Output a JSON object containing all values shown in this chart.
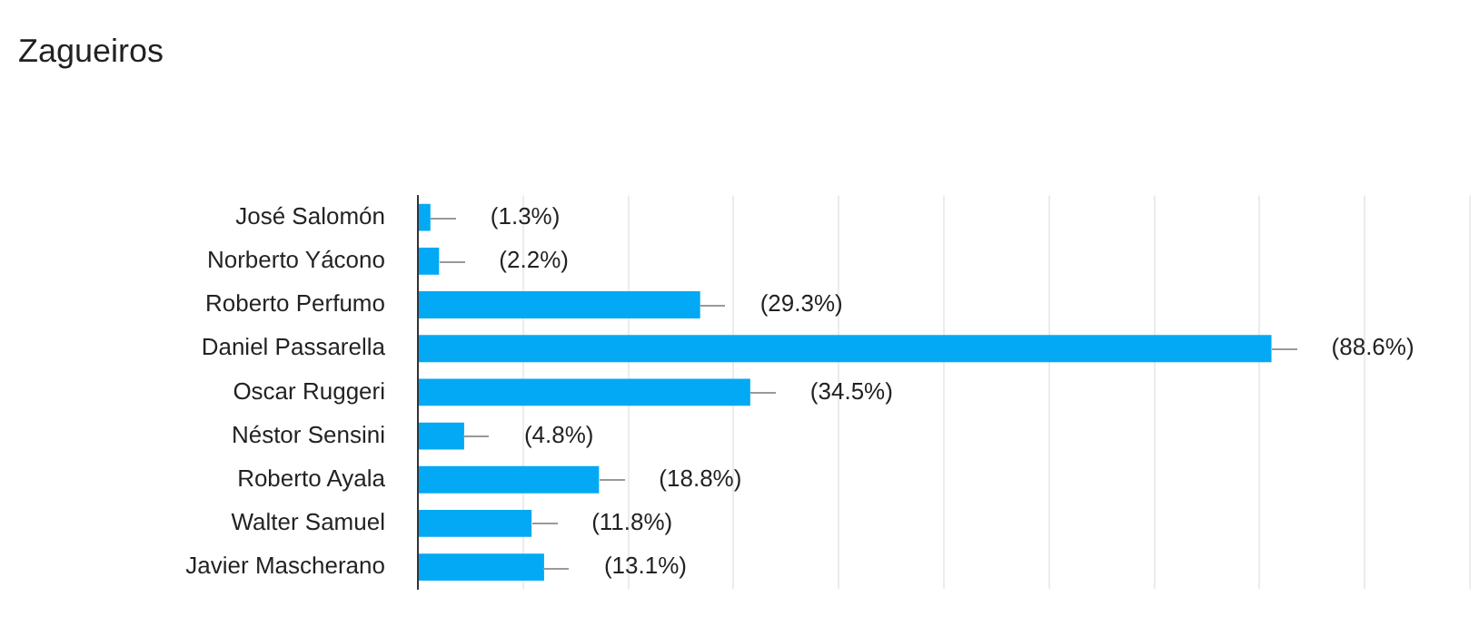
{
  "chart_data": {
    "type": "bar",
    "title": "Zagueiros",
    "orientation": "horizontal",
    "categories": [
      "José Salomón",
      "Norberto Yácono",
      "Roberto Perfumo",
      "Daniel Passarella",
      "Oscar Ruggeri",
      "Néstor Sensini",
      "Roberto Ayala",
      "Walter Samuel",
      "Javier Mascherano"
    ],
    "values": [
      1.3,
      2.2,
      29.3,
      88.6,
      34.5,
      4.8,
      18.8,
      11.8,
      13.1
    ],
    "value_labels": [
      "(1.3%)",
      "(2.2%)",
      "(29.3%)",
      "(88.6%)",
      "(34.5%)",
      "(4.8%)",
      "(18.8%)",
      "(11.8%)",
      "(13.1%)"
    ],
    "color": "#03a9f4",
    "xlim": [
      0,
      109.2
    ],
    "xticks": [
      {
        "value": 0,
        "label": null
      },
      {
        "value": 10.92,
        "label": null
      },
      {
        "value": 21.84,
        "label": null
      },
      {
        "value": 32.76,
        "label": null
      },
      {
        "value": 43.68,
        "label": null
      },
      {
        "value": 54.6,
        "label": null
      },
      {
        "value": 65.52,
        "label": null
      },
      {
        "value": 76.44,
        "label": null
      },
      {
        "value": 87.36,
        "label": null
      },
      {
        "value": 98.28,
        "label": null
      },
      {
        "value": 109.2,
        "label": null
      }
    ],
    "grid": "x",
    "legend": false
  }
}
